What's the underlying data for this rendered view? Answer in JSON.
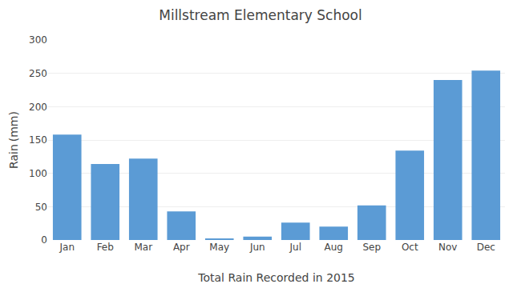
{
  "chart_data": {
    "type": "bar",
    "title": "Millstream Elementary School",
    "categories": [
      "Jan",
      "Feb",
      "Mar",
      "Apr",
      "May",
      "Jun",
      "Jul",
      "Aug",
      "Sep",
      "Oct",
      "Nov",
      "Dec"
    ],
    "values": [
      158,
      114,
      122,
      43,
      2,
      5,
      26,
      20,
      52,
      134,
      240,
      254
    ],
    "color": "#5B9BD5",
    "xlabel": "Total Rain Recorded in 2015",
    "ylabel": "Rain (mm)",
    "ylim": [
      0,
      300
    ],
    "yticks": [
      0,
      50,
      100,
      150,
      200,
      250,
      300
    ],
    "grid": true
  }
}
